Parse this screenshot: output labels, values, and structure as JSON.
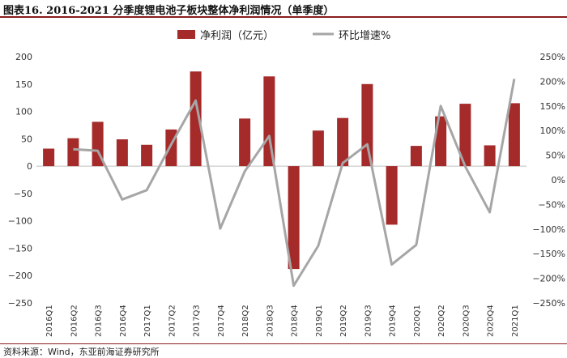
{
  "title": "图表16. 2016-2021 分季度锂电池子板块整体净利润情况（单季度）",
  "source": "资料来源：Wind，东亚前海证券研究所",
  "chart_data": {
    "type": "bar+line",
    "categories": [
      "2016Q1",
      "2016Q2",
      "2016Q3",
      "2016Q4",
      "2017Q1",
      "2017Q2",
      "2017Q3",
      "2017Q4",
      "2018Q2",
      "2018Q3",
      "2018Q4",
      "2019Q1",
      "2019Q2",
      "2019Q3",
      "2019Q4",
      "2020Q1",
      "2020Q2",
      "2020Q3",
      "2020Q4",
      "2021Q1"
    ],
    "series": [
      {
        "name": "净利润（亿元）",
        "type": "bar",
        "axis": "left",
        "color": "#a52a2a",
        "values": [
          32,
          51,
          81,
          49,
          39,
          67,
          173,
          0,
          87,
          164,
          -188,
          65,
          88,
          150,
          -107,
          37,
          91,
          114,
          38,
          115
        ]
      },
      {
        "name": "环比增速%",
        "type": "line",
        "axis": "right",
        "color": "#a6a6a6",
        "values": [
          null,
          62,
          59,
          -40,
          -21,
          72,
          161,
          -99,
          17,
          89,
          -215,
          -134,
          34,
          72,
          -172,
          -132,
          150,
          27,
          -66,
          205
        ]
      }
    ],
    "left_axis": {
      "min": -250,
      "max": 200,
      "step": 50,
      "ticks": [
        "200",
        "150",
        "100",
        "50",
        "0",
        "−50",
        "−100",
        "−150",
        "−200",
        "−250"
      ]
    },
    "right_axis": {
      "min": -250,
      "max": 250,
      "step": 50,
      "ticks": [
        "250%",
        "200%",
        "150%",
        "100%",
        "50%",
        "0%",
        "−50%",
        "−100%",
        "−150%",
        "−200%",
        "−250%"
      ]
    },
    "legend": [
      "净利润（亿元）",
      "环比增速%"
    ]
  }
}
